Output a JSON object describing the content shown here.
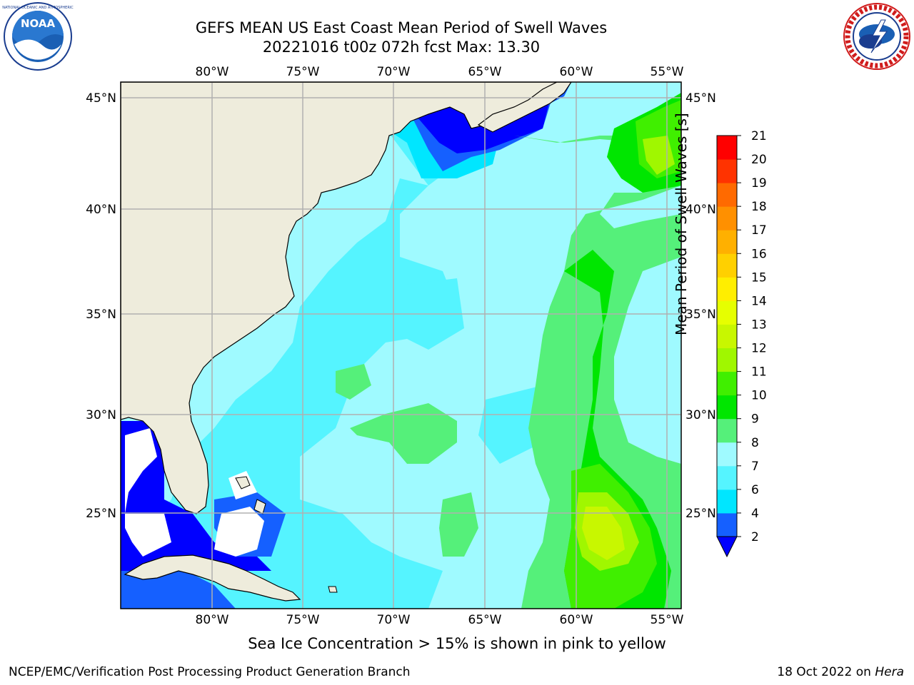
{
  "header": {
    "title_line1": "GEFS MEAN US East Coast Mean Period of Swell Waves",
    "title_line2": "20221016 t00z 072h fcst   Max: 13.30"
  },
  "logos": {
    "left": {
      "name": "NOAA",
      "text": "NOAA"
    },
    "right": {
      "name": "National Weather Service"
    }
  },
  "map": {
    "lon_labels": [
      "80°W",
      "75°W",
      "70°W",
      "65°W",
      "60°W",
      "55°W"
    ],
    "lat_labels": [
      "45°N",
      "40°N",
      "35°N",
      "30°N",
      "25°N"
    ],
    "extent": {
      "lon": [
        -85,
        -54
      ],
      "lat": [
        20.5,
        45.8
      ]
    },
    "colors": {
      "land": "#eeecdc",
      "ocean_base": "#9ffaff",
      "grid": "#b0b0b0"
    }
  },
  "colorbar": {
    "title": "Mean Period of Swell Waves [s]",
    "ticks": [
      "2",
      "4",
      "6",
      "7",
      "8",
      "9",
      "10",
      "11",
      "12",
      "13",
      "14",
      "15",
      "16",
      "17",
      "18",
      "19",
      "20",
      "21"
    ],
    "colors": [
      "#1560ff",
      "#00e6ff",
      "#55f4ff",
      "#9ffaff",
      "#55f07a",
      "#00e600",
      "#40ef00",
      "#a0f700",
      "#c8f700",
      "#e6ff00",
      "#ffee00",
      "#ffd000",
      "#ffb000",
      "#ff9000",
      "#ff6a00",
      "#ff3300",
      "#ff0000"
    ],
    "under_color": "#0000ff"
  },
  "footer": {
    "sea_ice_note": "Sea Ice Concentration > 15% is shown in pink to yellow",
    "left": "NCEP/EMC/Verification Post Processing Product Generation Branch",
    "right_prefix": "18 Oct 2022 on ",
    "right_host": "Hera"
  }
}
